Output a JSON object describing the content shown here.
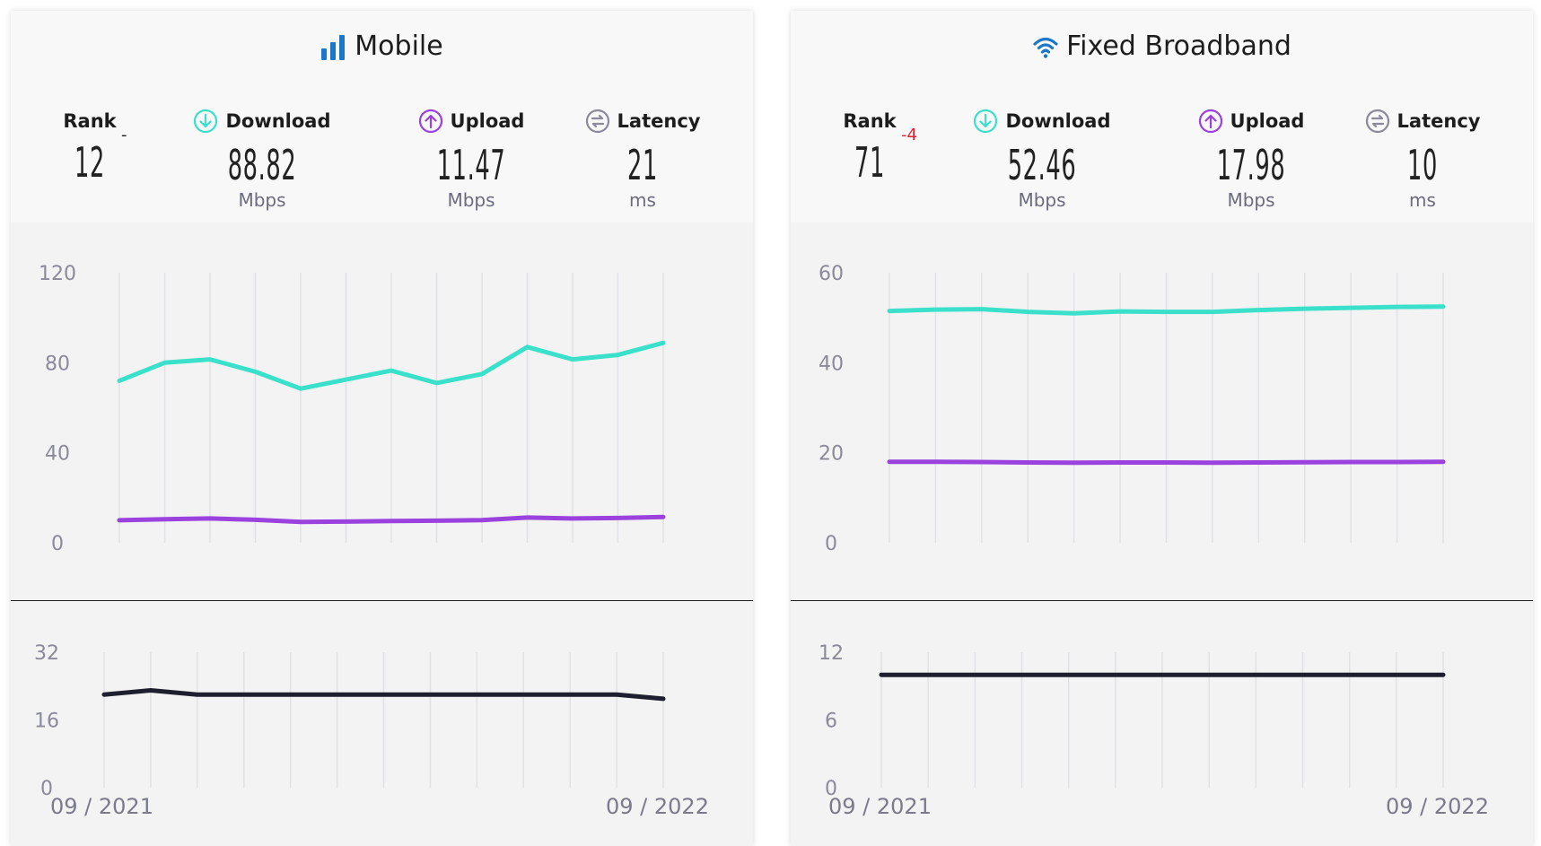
{
  "colors": {
    "download": "#3be0cb",
    "upload": "#9b41dd",
    "latency": "#1e1f2e",
    "icon_blue": "#1a77c9",
    "rank_change": "#e0202f"
  },
  "labels": {
    "rank": "Rank",
    "download": "Download",
    "upload": "Upload",
    "latency": "Latency"
  },
  "panels": [
    {
      "title": "Mobile",
      "icon": "signal-bars-icon",
      "rank": "12",
      "rank_change": "-",
      "download": {
        "value": "88.82",
        "unit": "Mbps"
      },
      "upload": {
        "value": "11.47",
        "unit": "Mbps"
      },
      "latency": {
        "value": "21",
        "unit": "ms"
      },
      "date_start": "09 / 2021",
      "date_end": "09 / 2022"
    },
    {
      "title": "Fixed Broadband",
      "icon": "wifi-icon",
      "rank": "71",
      "rank_change": "-4",
      "download": {
        "value": "52.46",
        "unit": "Mbps"
      },
      "upload": {
        "value": "17.98",
        "unit": "Mbps"
      },
      "latency": {
        "value": "10",
        "unit": "ms"
      },
      "date_start": "09 / 2021",
      "date_end": "09 / 2022"
    }
  ],
  "chart_data": [
    {
      "type": "line",
      "panel": "Mobile",
      "x": [
        "09 / 2021",
        "",
        "",
        "",
        "",
        "",
        "",
        "",
        "",
        "",
        "",
        "",
        "09 / 2022"
      ],
      "ylim": [
        0,
        120
      ],
      "yticks": [
        0,
        40,
        80,
        120
      ],
      "series": [
        {
          "values": [
            72,
            80,
            81.5,
            76,
            68.5,
            72.5,
            76.5,
            71,
            75,
            87,
            81.5,
            83.5,
            88.82
          ]
        },
        {
          "values": [
            10,
            10.5,
            10.8,
            10.2,
            9.3,
            9.4,
            9.7,
            9.8,
            10.1,
            11.2,
            10.8,
            11,
            11.47
          ]
        }
      ]
    },
    {
      "type": "line",
      "panel": "Mobile",
      "x": [
        "09 / 2021",
        "",
        "",
        "",
        "",
        "",
        "",
        "",
        "",
        "",
        "",
        "",
        "09 / 2022"
      ],
      "ylim": [
        0,
        32
      ],
      "yticks": [
        0,
        16,
        32
      ],
      "series": [
        {
          "values": [
            22,
            23,
            22,
            22,
            22,
            22,
            22,
            22,
            22,
            22,
            22,
            22,
            21
          ]
        }
      ]
    },
    {
      "type": "line",
      "panel": "Fixed Broadband",
      "x": [
        "09 / 2021",
        "",
        "",
        "",
        "",
        "",
        "",
        "",
        "",
        "",
        "",
        "",
        "09 / 2022"
      ],
      "ylim": [
        0,
        60
      ],
      "yticks": [
        0,
        20,
        40,
        60
      ],
      "series": [
        {
          "values": [
            51.5,
            51.8,
            51.9,
            51.3,
            51,
            51.4,
            51.3,
            51.3,
            51.7,
            52,
            52.2,
            52.4,
            52.46
          ]
        },
        {
          "values": [
            18,
            18,
            17.95,
            17.85,
            17.8,
            17.85,
            17.85,
            17.8,
            17.85,
            17.9,
            17.95,
            17.95,
            17.98
          ]
        }
      ]
    },
    {
      "type": "line",
      "panel": "Fixed Broadband",
      "x": [
        "09 / 2021",
        "",
        "",
        "",
        "",
        "",
        "",
        "",
        "",
        "",
        "",
        "",
        "09 / 2022"
      ],
      "ylim": [
        0,
        12
      ],
      "yticks": [
        0,
        6,
        12
      ],
      "series": [
        {
          "values": [
            10,
            10,
            10,
            10,
            10,
            10,
            10,
            10,
            10,
            10,
            10,
            10,
            10
          ]
        }
      ]
    }
  ]
}
